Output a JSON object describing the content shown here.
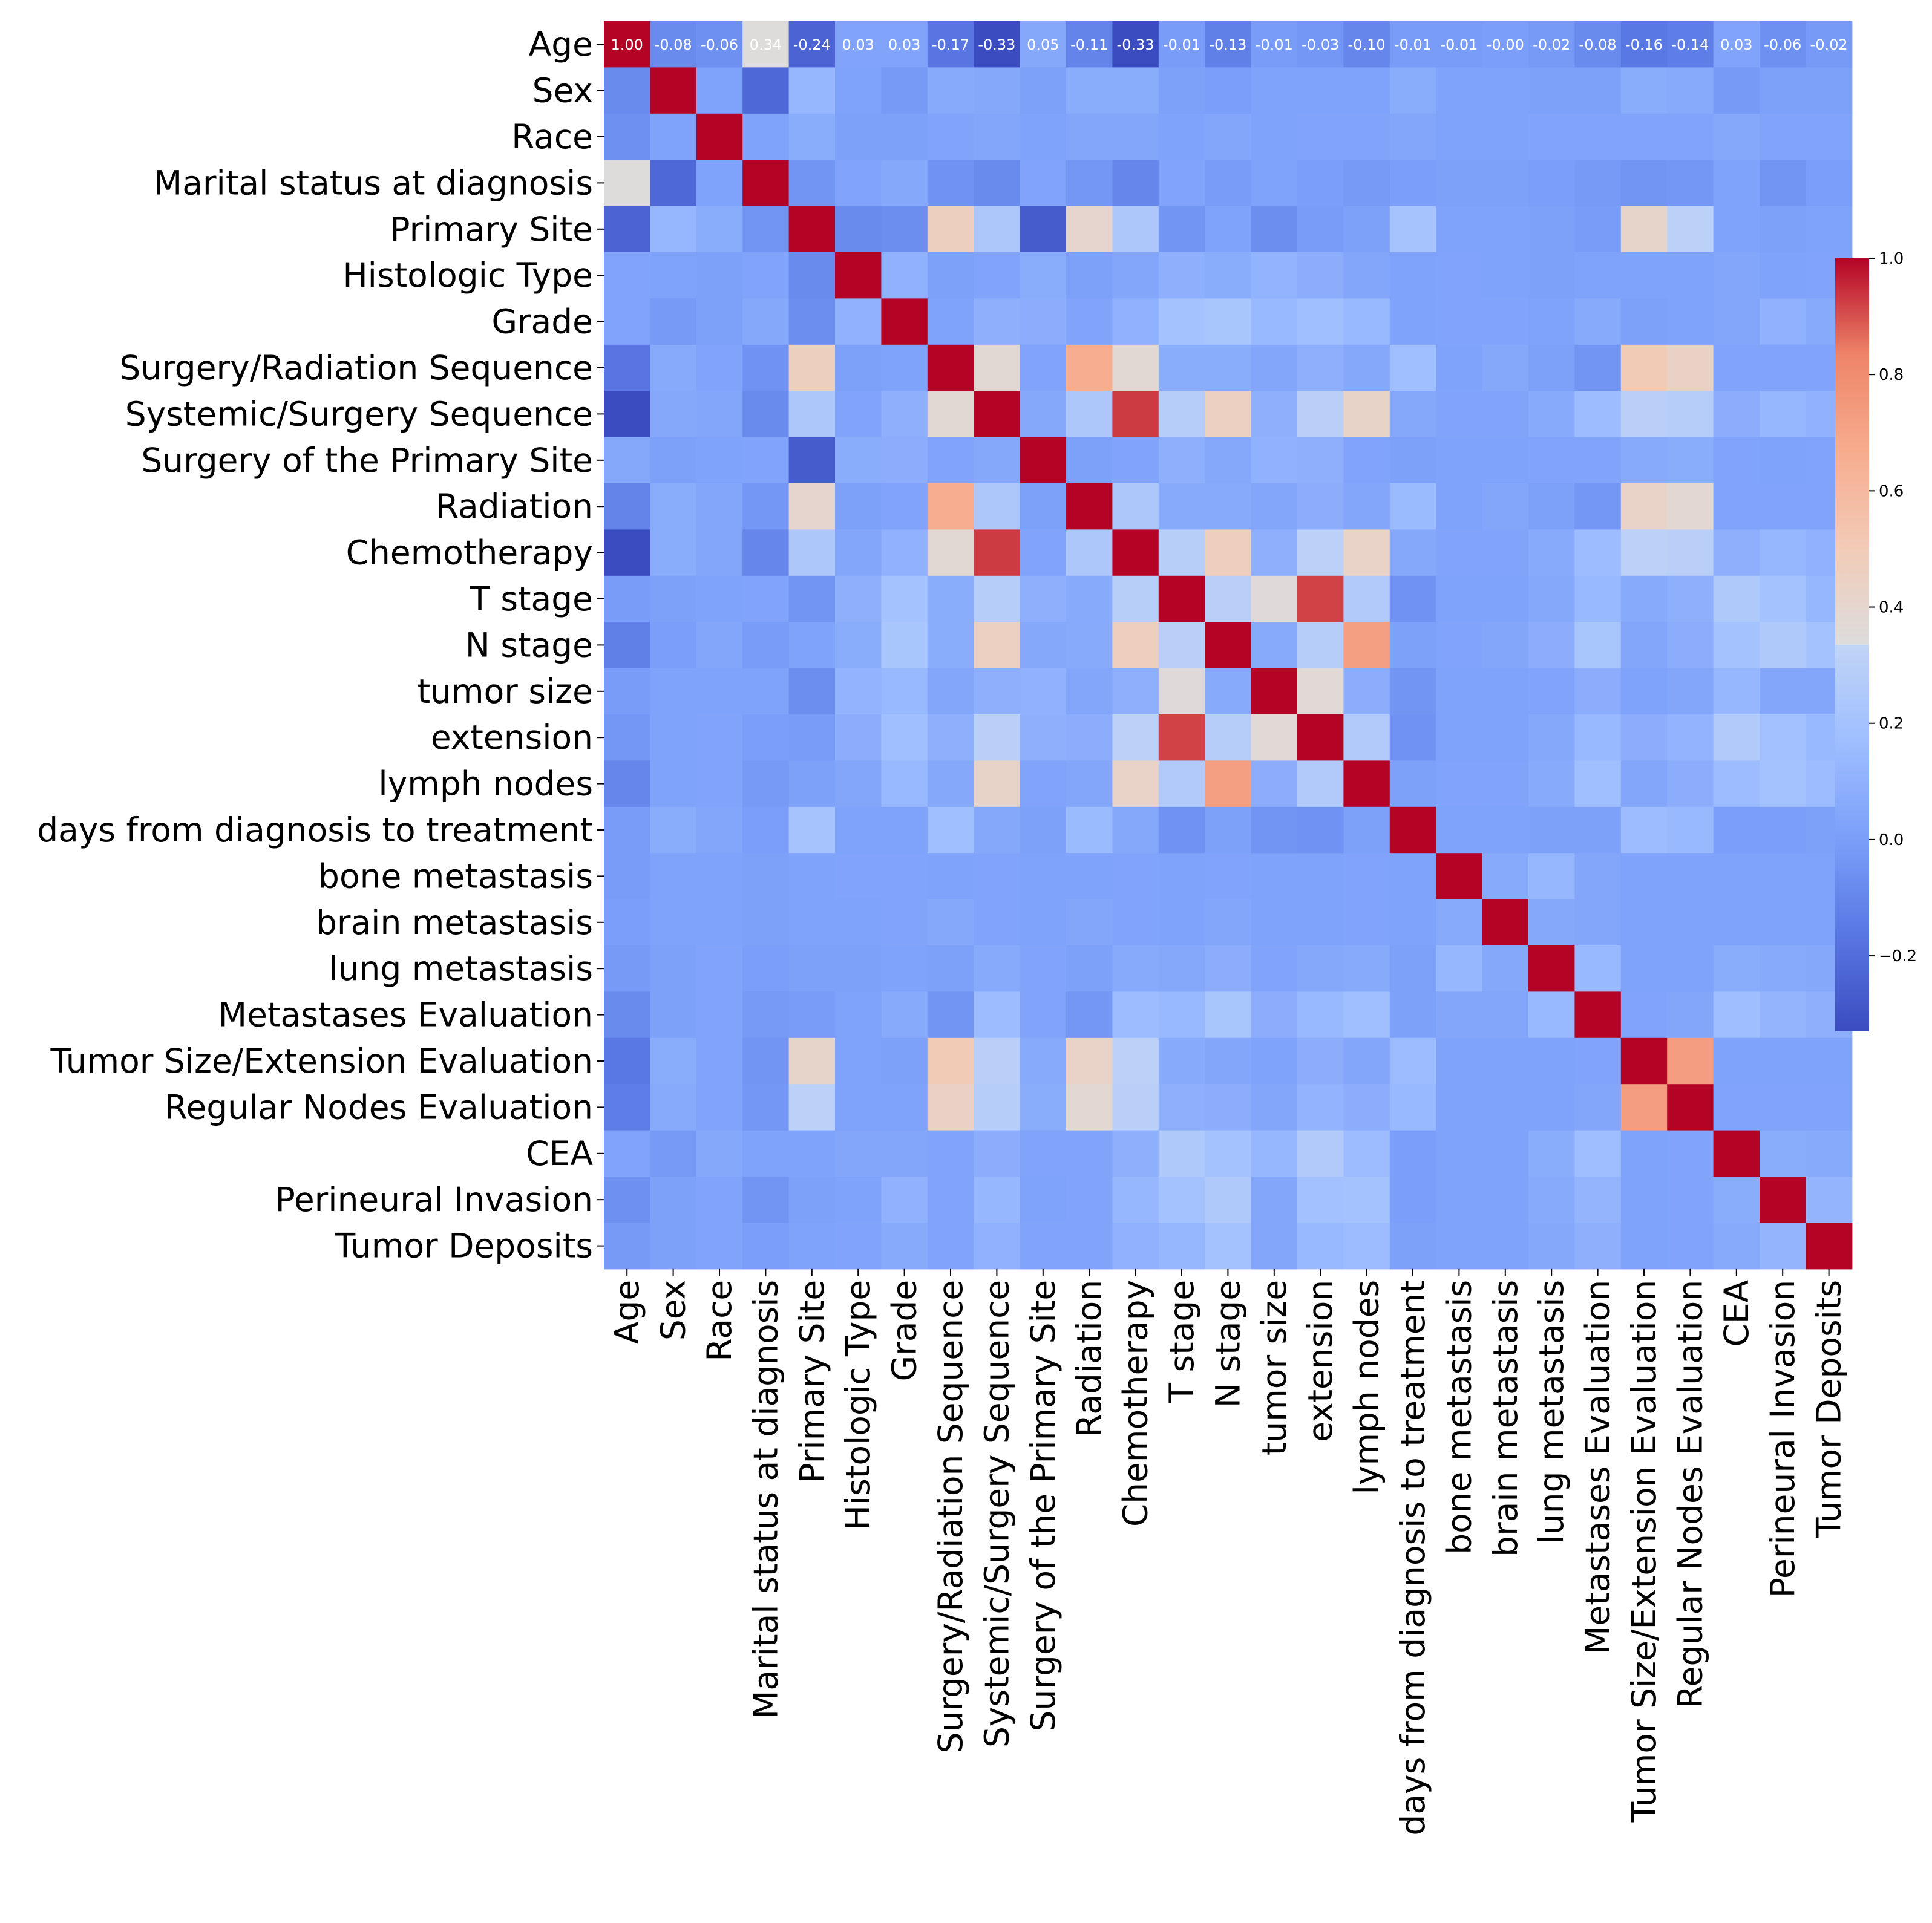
{
  "chart_data": {
    "type": "heatmap",
    "title": "",
    "colormap": "coolwarm",
    "labels": [
      "Age",
      "Sex",
      "Race",
      "Marital status at diagnosis",
      "Primary Site",
      "Histologic Type",
      "Grade",
      "Surgery/Radiation Sequence",
      "Systemic/Surgery Sequence",
      "Surgery of the Primary Site",
      "Radiation",
      "Chemotherapy",
      "T stage",
      "N stage",
      "tumor size",
      "extension",
      "lymph nodes",
      "days from diagnosis to treatment",
      "bone metastasis",
      "brain metastasis",
      "lung metastasis",
      "Metastases Evaluation",
      "Tumor Size/Extension Evaluation",
      "Regular Nodes Evaluation",
      "CEA",
      "Perineural Invasion",
      "Tumor Deposits"
    ],
    "annotated_first_row": [
      "1.00",
      "-0.08",
      "-0.06",
      "0.34",
      "-0.24",
      "0.03",
      "0.03",
      "-0.17",
      "-0.33",
      "0.05",
      "-0.11",
      "-0.33",
      "-0.01",
      "-0.13",
      "-0.01",
      "-0.03",
      "-0.10",
      "-0.01",
      "-0.01",
      "-0.00",
      "-0.02",
      "-0.08",
      "-0.16",
      "-0.14",
      "0.03",
      "-0.06",
      "-0.02"
    ],
    "matrix": [
      [
        1.0,
        -0.08,
        -0.06,
        0.34,
        -0.24,
        0.03,
        0.03,
        -0.17,
        -0.33,
        0.05,
        -0.11,
        -0.33,
        -0.01,
        -0.13,
        -0.01,
        -0.03,
        -0.1,
        -0.01,
        -0.01,
        -0.0,
        -0.02,
        -0.08,
        -0.16,
        -0.14,
        0.03,
        -0.06,
        -0.02
      ],
      [
        -0.08,
        1.0,
        0.02,
        -0.22,
        0.13,
        0.02,
        -0.02,
        0.06,
        0.05,
        0.01,
        0.07,
        0.07,
        0.01,
        0.0,
        0.02,
        0.02,
        0.02,
        0.07,
        0.02,
        0.02,
        0.01,
        0.01,
        0.07,
        0.06,
        -0.02,
        0.01,
        0.01
      ],
      [
        -0.06,
        0.02,
        1.0,
        0.02,
        0.07,
        0.01,
        0.01,
        0.03,
        0.04,
        0.02,
        0.04,
        0.04,
        0.02,
        0.04,
        0.02,
        0.03,
        0.03,
        0.04,
        0.02,
        0.02,
        0.03,
        0.03,
        0.03,
        0.03,
        0.05,
        0.03,
        0.03
      ],
      [
        0.34,
        -0.22,
        0.02,
        1.0,
        -0.04,
        0.03,
        0.05,
        -0.05,
        -0.08,
        0.03,
        -0.03,
        -0.1,
        0.03,
        -0.01,
        0.02,
        0.0,
        -0.02,
        0.0,
        0.01,
        0.01,
        0.0,
        -0.02,
        -0.04,
        -0.03,
        0.02,
        -0.04,
        0.0
      ],
      [
        -0.24,
        0.13,
        0.07,
        -0.04,
        1.0,
        -0.08,
        -0.07,
        0.46,
        0.24,
        -0.27,
        0.4,
        0.24,
        -0.04,
        0.02,
        -0.07,
        -0.01,
        0.01,
        0.21,
        0.02,
        0.02,
        0.01,
        -0.01,
        0.41,
        0.31,
        0.02,
        0.01,
        0.02
      ],
      [
        0.03,
        0.02,
        0.01,
        0.03,
        -0.08,
        1.0,
        0.1,
        0.01,
        0.03,
        0.07,
        0.01,
        0.04,
        0.09,
        0.07,
        0.11,
        0.08,
        0.04,
        0.02,
        0.03,
        0.02,
        0.01,
        0.02,
        0.02,
        0.02,
        0.04,
        0.02,
        0.03
      ],
      [
        0.03,
        -0.02,
        0.01,
        0.05,
        -0.07,
        0.1,
        1.0,
        0.02,
        0.09,
        0.08,
        0.03,
        0.1,
        0.2,
        0.22,
        0.14,
        0.18,
        0.14,
        0.02,
        0.03,
        0.03,
        0.02,
        0.06,
        0.01,
        0.02,
        0.04,
        0.1,
        0.06
      ],
      [
        -0.17,
        0.06,
        0.03,
        -0.05,
        0.46,
        0.01,
        0.02,
        1.0,
        0.37,
        0.03,
        0.66,
        0.37,
        0.07,
        0.07,
        0.04,
        0.09,
        0.05,
        0.18,
        0.02,
        0.05,
        0.01,
        -0.04,
        0.5,
        0.44,
        0.03,
        0.03,
        0.03
      ],
      [
        -0.33,
        0.05,
        0.04,
        -0.08,
        0.24,
        0.03,
        0.09,
        0.37,
        1.0,
        0.05,
        0.24,
        0.93,
        0.28,
        0.45,
        0.09,
        0.3,
        0.42,
        0.05,
        0.03,
        0.03,
        0.06,
        0.16,
        0.3,
        0.28,
        0.08,
        0.13,
        0.1
      ],
      [
        0.05,
        0.01,
        0.02,
        0.03,
        -0.27,
        0.07,
        0.08,
        0.03,
        0.05,
        1.0,
        0.01,
        0.03,
        0.09,
        0.05,
        0.1,
        0.09,
        0.03,
        0.01,
        0.02,
        0.02,
        0.03,
        0.03,
        0.06,
        0.07,
        0.03,
        0.02,
        0.03
      ],
      [
        -0.11,
        0.07,
        0.04,
        -0.03,
        0.4,
        0.01,
        0.03,
        0.66,
        0.24,
        0.01,
        1.0,
        0.24,
        0.06,
        0.06,
        0.04,
        0.08,
        0.04,
        0.15,
        0.02,
        0.04,
        0.01,
        -0.03,
        0.43,
        0.38,
        0.03,
        0.03,
        0.03
      ],
      [
        -0.33,
        0.07,
        0.04,
        -0.1,
        0.24,
        0.04,
        0.1,
        0.37,
        0.93,
        0.03,
        0.24,
        1.0,
        0.29,
        0.47,
        0.09,
        0.31,
        0.43,
        0.05,
        0.03,
        0.03,
        0.06,
        0.16,
        0.31,
        0.3,
        0.09,
        0.13,
        0.1
      ],
      [
        -0.01,
        0.01,
        0.02,
        0.03,
        -0.04,
        0.09,
        0.2,
        0.07,
        0.28,
        0.09,
        0.06,
        0.29,
        1.0,
        0.3,
        0.35,
        0.92,
        0.26,
        -0.05,
        0.02,
        0.02,
        0.05,
        0.14,
        0.06,
        0.09,
        0.25,
        0.2,
        0.13
      ],
      [
        -0.13,
        0.0,
        0.04,
        -0.01,
        0.02,
        0.07,
        0.22,
        0.07,
        0.45,
        0.05,
        0.06,
        0.47,
        0.3,
        1.0,
        0.06,
        0.28,
        0.72,
        0.01,
        0.03,
        0.04,
        0.08,
        0.22,
        0.04,
        0.08,
        0.2,
        0.25,
        0.2
      ],
      [
        -0.01,
        0.02,
        0.02,
        0.02,
        -0.07,
        0.11,
        0.14,
        0.04,
        0.09,
        0.1,
        0.04,
        0.09,
        0.35,
        0.06,
        1.0,
        0.36,
        0.08,
        -0.04,
        0.02,
        0.02,
        0.03,
        0.08,
        0.02,
        0.04,
        0.13,
        0.04,
        0.04
      ],
      [
        -0.03,
        0.02,
        0.03,
        0.0,
        -0.01,
        0.08,
        0.18,
        0.09,
        0.3,
        0.09,
        0.08,
        0.31,
        0.92,
        0.28,
        0.36,
        1.0,
        0.26,
        -0.05,
        0.02,
        0.02,
        0.05,
        0.14,
        0.08,
        0.11,
        0.26,
        0.19,
        0.14
      ],
      [
        -0.1,
        0.02,
        0.03,
        -0.02,
        0.01,
        0.04,
        0.14,
        0.05,
        0.42,
        0.03,
        0.04,
        0.43,
        0.26,
        0.72,
        0.08,
        0.26,
        1.0,
        0.01,
        0.03,
        0.03,
        0.06,
        0.18,
        0.04,
        0.08,
        0.16,
        0.2,
        0.16
      ],
      [
        -0.01,
        0.07,
        0.04,
        0.0,
        0.21,
        0.02,
        0.02,
        0.18,
        0.05,
        0.01,
        0.15,
        0.05,
        -0.05,
        0.01,
        -0.04,
        -0.05,
        0.01,
        1.0,
        0.02,
        0.02,
        0.01,
        0.01,
        0.16,
        0.14,
        0.0,
        0.0,
        0.01
      ],
      [
        -0.01,
        0.02,
        0.02,
        0.01,
        0.02,
        0.03,
        0.03,
        0.02,
        0.03,
        0.02,
        0.02,
        0.03,
        0.02,
        0.03,
        0.02,
        0.02,
        0.03,
        0.02,
        1.0,
        0.06,
        0.13,
        0.04,
        0.02,
        0.02,
        0.02,
        0.02,
        0.02
      ],
      [
        -0.0,
        0.02,
        0.02,
        0.01,
        0.02,
        0.02,
        0.03,
        0.05,
        0.03,
        0.02,
        0.04,
        0.03,
        0.02,
        0.04,
        0.02,
        0.02,
        0.03,
        0.02,
        0.06,
        1.0,
        0.05,
        0.04,
        0.02,
        0.02,
        0.02,
        0.02,
        0.02
      ],
      [
        -0.02,
        0.01,
        0.03,
        0.0,
        0.01,
        0.01,
        0.02,
        0.01,
        0.06,
        0.03,
        0.01,
        0.06,
        0.05,
        0.08,
        0.03,
        0.05,
        0.06,
        0.01,
        0.13,
        0.05,
        1.0,
        0.14,
        0.02,
        0.02,
        0.07,
        0.06,
        0.05
      ],
      [
        -0.08,
        0.01,
        0.03,
        -0.02,
        -0.01,
        0.02,
        0.06,
        -0.04,
        0.16,
        0.03,
        -0.03,
        0.16,
        0.14,
        0.22,
        0.08,
        0.14,
        0.18,
        0.01,
        0.04,
        0.04,
        0.14,
        1.0,
        0.03,
        0.04,
        0.17,
        0.12,
        0.09
      ],
      [
        -0.16,
        0.07,
        0.03,
        -0.04,
        0.41,
        0.02,
        0.01,
        0.5,
        0.3,
        0.06,
        0.43,
        0.31,
        0.06,
        0.04,
        0.02,
        0.08,
        0.04,
        0.16,
        0.02,
        0.02,
        0.02,
        0.03,
        1.0,
        0.73,
        0.02,
        0.02,
        0.02
      ],
      [
        -0.14,
        0.06,
        0.03,
        -0.03,
        0.31,
        0.02,
        0.02,
        0.44,
        0.28,
        0.07,
        0.38,
        0.3,
        0.09,
        0.08,
        0.04,
        0.11,
        0.08,
        0.14,
        0.02,
        0.02,
        0.02,
        0.04,
        0.73,
        1.0,
        0.03,
        0.03,
        0.03
      ],
      [
        0.03,
        -0.02,
        0.05,
        0.02,
        0.02,
        0.04,
        0.04,
        0.03,
        0.08,
        0.03,
        0.03,
        0.09,
        0.25,
        0.2,
        0.13,
        0.26,
        0.16,
        0.0,
        0.02,
        0.02,
        0.07,
        0.17,
        0.02,
        0.03,
        1.0,
        0.07,
        0.06
      ],
      [
        -0.06,
        0.01,
        0.03,
        -0.04,
        0.01,
        0.02,
        0.1,
        0.03,
        0.13,
        0.02,
        0.03,
        0.13,
        0.2,
        0.25,
        0.04,
        0.19,
        0.2,
        0.0,
        0.02,
        0.02,
        0.06,
        0.12,
        0.02,
        0.03,
        0.07,
        1.0,
        0.12
      ],
      [
        -0.02,
        0.01,
        0.03,
        0.0,
        0.02,
        0.03,
        0.06,
        0.03,
        0.1,
        0.03,
        0.03,
        0.1,
        0.13,
        0.2,
        0.04,
        0.14,
        0.16,
        0.01,
        0.02,
        0.02,
        0.05,
        0.09,
        0.02,
        0.03,
        0.06,
        0.12,
        1.0
      ]
    ],
    "colorbar": {
      "vmin": -0.33,
      "vmax": 1.0,
      "ticks": [
        1.0,
        0.8,
        0.6,
        0.4,
        0.2,
        0.0,
        -0.2
      ],
      "tick_labels": [
        "1.0",
        "0.8",
        "0.6",
        "0.4",
        "0.2",
        "0.0",
        "−0.2"
      ]
    }
  }
}
